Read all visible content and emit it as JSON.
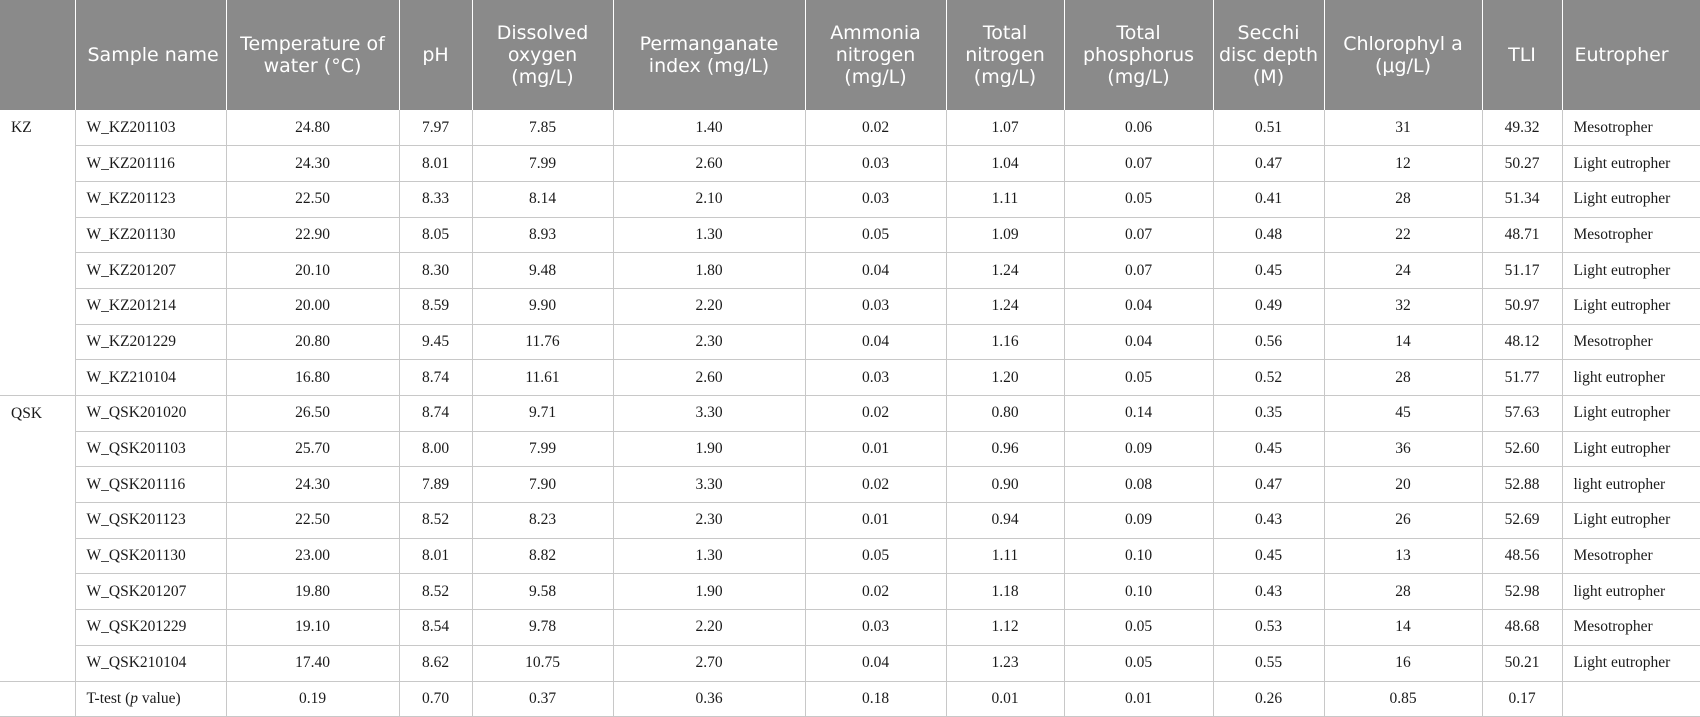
{
  "columns": [
    "",
    "Sample name",
    "Temperature of water (°C)",
    "pH",
    "Dissolved oxygen (mg/L)",
    "Permanganate index (mg/L)",
    "Ammonia nitrogen (mg/L)",
    "Total nitrogen (mg/L)",
    "Total phosphorus (mg/L)",
    "Secchi disc depth (M)",
    "Chlorophyl a (μg/L)",
    "TLI",
    "Eutropher"
  ],
  "rows": [
    [
      "KZ",
      "W_KZ201103",
      "24.80",
      "7.97",
      "7.85",
      "1.40",
      "0.02",
      "1.07",
      "0.06",
      "0.51",
      "31",
      "49.32",
      "Mesotropher"
    ],
    [
      "",
      "W_KZ201116",
      "24.30",
      "8.01",
      "7.99",
      "2.60",
      "0.03",
      "1.04",
      "0.07",
      "0.47",
      "12",
      "50.27",
      "Light eutropher"
    ],
    [
      "",
      "W_KZ201123",
      "22.50",
      "8.33",
      "8.14",
      "2.10",
      "0.03",
      "1.11",
      "0.05",
      "0.41",
      "28",
      "51.34",
      "Light eutropher"
    ],
    [
      "",
      "W_KZ201130",
      "22.90",
      "8.05",
      "8.93",
      "1.30",
      "0.05",
      "1.09",
      "0.07",
      "0.48",
      "22",
      "48.71",
      "Mesotropher"
    ],
    [
      "",
      "W_KZ201207",
      "20.10",
      "8.30",
      "9.48",
      "1.80",
      "0.04",
      "1.24",
      "0.07",
      "0.45",
      "24",
      "51.17",
      "Light eutropher"
    ],
    [
      "",
      "W_KZ201214",
      "20.00",
      "8.59",
      "9.90",
      "2.20",
      "0.03",
      "1.24",
      "0.04",
      "0.49",
      "32",
      "50.97",
      "Light eutropher"
    ],
    [
      "",
      "W_KZ201229",
      "20.80",
      "9.45",
      "11.76",
      "2.30",
      "0.04",
      "1.16",
      "0.04",
      "0.56",
      "14",
      "48.12",
      "Mesotropher"
    ],
    [
      "",
      "W_KZ210104",
      "16.80",
      "8.74",
      "11.61",
      "2.60",
      "0.03",
      "1.20",
      "0.05",
      "0.52",
      "28",
      "51.77",
      "light eutropher"
    ],
    [
      "QSK",
      "W_QSK201020",
      "26.50",
      "8.74",
      "9.71",
      "3.30",
      "0.02",
      "0.80",
      "0.14",
      "0.35",
      "45",
      "57.63",
      "Light eutropher"
    ],
    [
      "",
      "W_QSK201103",
      "25.70",
      "8.00",
      "7.99",
      "1.90",
      "0.01",
      "0.96",
      "0.09",
      "0.45",
      "36",
      "52.60",
      "Light eutropher"
    ],
    [
      "",
      "W_QSK201116",
      "24.30",
      "7.89",
      "7.90",
      "3.30",
      "0.02",
      "0.90",
      "0.08",
      "0.47",
      "20",
      "52.88",
      "light eutropher"
    ],
    [
      "",
      "W_QSK201123",
      "22.50",
      "8.52",
      "8.23",
      "2.30",
      "0.01",
      "0.94",
      "0.09",
      "0.43",
      "26",
      "52.69",
      "Light eutropher"
    ],
    [
      "",
      "W_QSK201130",
      "23.00",
      "8.01",
      "8.82",
      "1.30",
      "0.05",
      "1.11",
      "0.10",
      "0.45",
      "13",
      "48.56",
      "Mesotropher"
    ],
    [
      "",
      "W_QSK201207",
      "19.80",
      "8.52",
      "9.58",
      "1.90",
      "0.02",
      "1.18",
      "0.10",
      "0.43",
      "28",
      "52.98",
      "light eutropher"
    ],
    [
      "",
      "W_QSK201229",
      "19.10",
      "8.54",
      "9.78",
      "2.20",
      "0.03",
      "1.12",
      "0.05",
      "0.53",
      "14",
      "48.68",
      "Mesotropher"
    ],
    [
      "",
      "W_QSK210104",
      "17.40",
      "8.62",
      "10.75",
      "2.70",
      "0.04",
      "1.23",
      "0.05",
      "0.55",
      "16",
      "50.21",
      "Light eutropher"
    ]
  ],
  "ttest": {
    "label_prefix": "T-test (",
    "label_italic": "p",
    "label_suffix": " value)",
    "values": [
      "0.19",
      "0.70",
      "0.37",
      "0.36",
      "0.18",
      "0.01",
      "0.01",
      "0.26",
      "0.85",
      "0.17",
      ""
    ]
  }
}
